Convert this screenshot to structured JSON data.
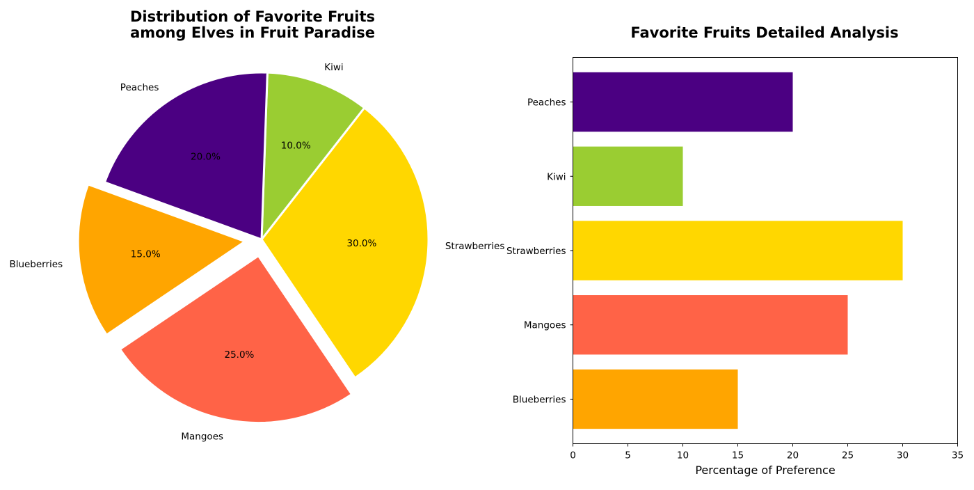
{
  "chart_data": [
    {
      "type": "pie",
      "title_lines": [
        "Distribution of Favorite Fruits",
        "among Elves in Fruit Paradise"
      ],
      "slices": [
        {
          "label": "Blueberries",
          "value": 15,
          "pct_label": "15.0%",
          "color": "#FFA500",
          "exploded": true
        },
        {
          "label": "Mangoes",
          "value": 25,
          "pct_label": "25.0%",
          "color": "#FF6347",
          "exploded": true
        },
        {
          "label": "Strawberries",
          "value": 30,
          "pct_label": "30.0%",
          "color": "#FFD700",
          "exploded": false
        },
        {
          "label": "Kiwi",
          "value": 10,
          "pct_label": "10.0%",
          "color": "#9ACD32",
          "exploded": false
        },
        {
          "label": "Peaches",
          "value": 20,
          "pct_label": "20.0%",
          "color": "#4B0082",
          "exploded": false
        }
      ]
    },
    {
      "type": "bar",
      "orientation": "horizontal",
      "title": "Favorite Fruits Detailed Analysis",
      "categories": [
        "Blueberries",
        "Mangoes",
        "Strawberries",
        "Kiwi",
        "Peaches"
      ],
      "values": [
        15,
        25,
        30,
        10,
        20
      ],
      "colors": [
        "#FFA500",
        "#FF6347",
        "#FFD700",
        "#9ACD32",
        "#4B0082"
      ],
      "xlabel": "Percentage of Preference",
      "ylabel": "",
      "xlim": [
        0,
        35
      ],
      "xticks": [
        "0",
        "5",
        "10",
        "15",
        "20",
        "25",
        "30",
        "35"
      ],
      "grid": false
    }
  ]
}
